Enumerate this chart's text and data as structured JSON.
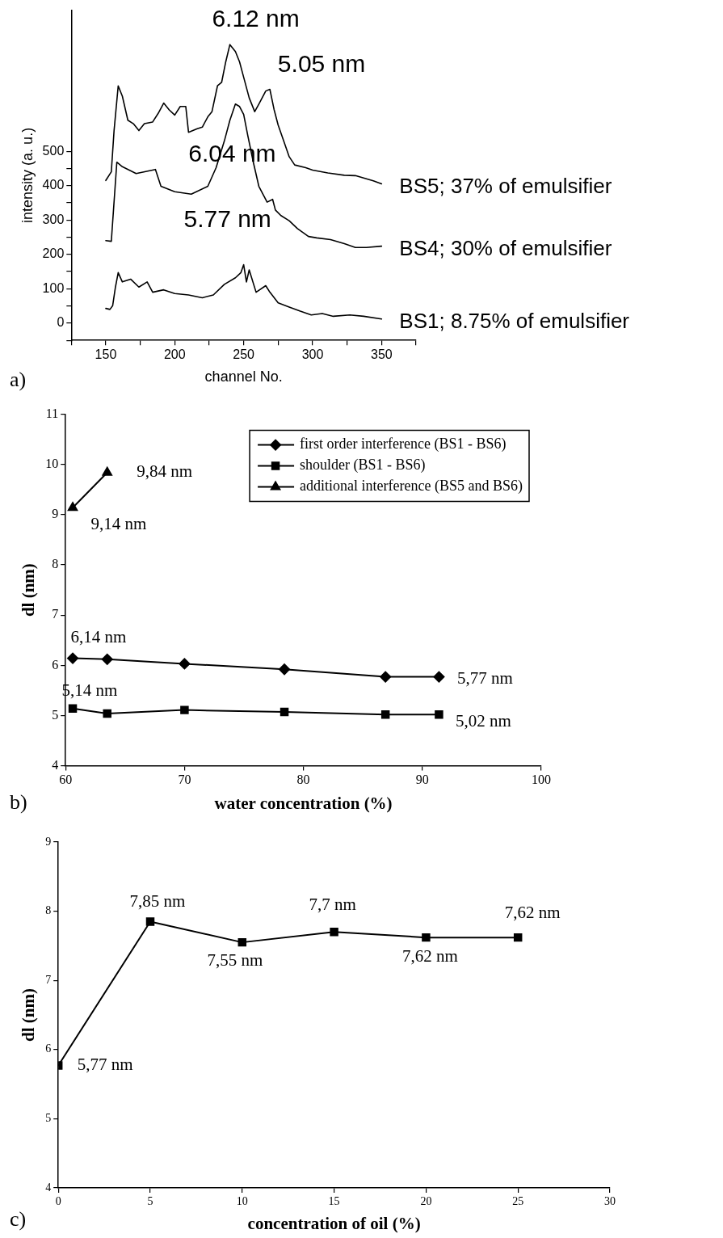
{
  "chart_data": [
    {
      "type": "line",
      "xlabel": "channel No.",
      "ylabel": "intensity (a. u.)",
      "xlim": [
        125,
        375
      ],
      "xticks": [
        {
          "value": 125,
          "label": null
        },
        150,
        {
          "value": 175,
          "label": null
        },
        200,
        {
          "value": 225,
          "label": null
        },
        250,
        {
          "value": 275,
          "label": null
        },
        300,
        {
          "value": 325,
          "label": null
        },
        350,
        {
          "value": 375,
          "label": null
        }
      ],
      "ylim": [
        -50,
        910
      ],
      "yticks": [
        {
          "value": -50,
          "label": null
        },
        0,
        {
          "value": 50,
          "label": null
        },
        100,
        {
          "value": 150,
          "label": null
        },
        200,
        {
          "value": 250,
          "label": null
        },
        300,
        {
          "value": 350,
          "label": null
        },
        400,
        {
          "value": 450,
          "label": null
        },
        500
      ],
      "grid": false,
      "legend": false,
      "marker": "none",
      "line_style": "solid",
      "series": [
        {
          "name": "BS5; 37% of emulsifier",
          "color": "#000000",
          "x": [
            150,
            154,
            156,
            159,
            162,
            166,
            170,
            174,
            178,
            184,
            188,
            192,
            196,
            200,
            204,
            208,
            210,
            216,
            220,
            224,
            227,
            231,
            234,
            237,
            240,
            242,
            244,
            247,
            250,
            254,
            258,
            261,
            266,
            269,
            272,
            275,
            279,
            283,
            287,
            295,
            300,
            311,
            323,
            331,
            338,
            344,
            350
          ],
          "values": [
            415,
            440,
            560,
            690,
            660,
            590,
            580,
            560,
            580,
            585,
            610,
            640,
            620,
            605,
            630,
            630,
            555,
            565,
            570,
            600,
            615,
            690,
            700,
            760,
            810,
            800,
            790,
            760,
            715,
            655,
            615,
            637,
            675,
            680,
            622,
            576,
            530,
            484,
            460,
            452,
            445,
            437,
            430,
            429,
            421,
            414,
            405
          ]
        },
        {
          "name": "BS4; 30% of emulsifier",
          "color": "#000000",
          "x": [
            150,
            154,
            158,
            162,
            172,
            186,
            190,
            200,
            212,
            224,
            230,
            236,
            240,
            244,
            247,
            250,
            253,
            257,
            261,
            267,
            271,
            273,
            277,
            283,
            289,
            297,
            303,
            313,
            323,
            331,
            339,
            350
          ],
          "values": [
            240,
            238,
            468,
            455,
            435,
            447,
            398,
            382,
            375,
            398,
            452,
            530,
            590,
            637,
            630,
            607,
            545,
            468,
            398,
            352,
            360,
            329,
            313,
            298,
            275,
            252,
            248,
            243,
            231,
            220,
            220,
            224
          ]
        },
        {
          "name": "BS1; 8.75% of emulsifier",
          "color": "#000000",
          "x": [
            150,
            153,
            155,
            157,
            159,
            162,
            168,
            174,
            180,
            184,
            192,
            200,
            210,
            220,
            228,
            236,
            244,
            248,
            250,
            252,
            254,
            259,
            266,
            269,
            275,
            283,
            291,
            299,
            307,
            315,
            327,
            337,
            350
          ],
          "values": [
            43,
            40,
            51,
            105,
            147,
            120,
            128,
            105,
            120,
            90,
            97,
            86,
            82,
            74,
            82,
            113,
            132,
            147,
            170,
            120,
            155,
            90,
            109,
            90,
            59,
            47,
            35,
            24,
            28,
            20,
            24,
            20,
            12
          ]
        }
      ],
      "annotations": [
        {
          "text": "6.12 nm",
          "x": 240,
          "y": 810
        },
        {
          "text": "5.05 nm",
          "x": 269,
          "y": 680
        },
        {
          "text": "6.04 nm",
          "x": 244,
          "y": 637
        },
        {
          "text": "5.77 nm",
          "x": 250,
          "y": 170
        },
        "a)"
      ]
    },
    {
      "type": "line",
      "xlabel": "water concentration (%)",
      "ylabel": "dl (nm)",
      "xlim": [
        60,
        100
      ],
      "xticks": [
        60,
        70,
        80,
        90,
        100
      ],
      "ylim": [
        4,
        11
      ],
      "yticks": [
        4,
        5,
        6,
        7,
        8,
        9,
        10,
        11
      ],
      "grid": false,
      "legend": "top right",
      "line_style": "solid",
      "series": [
        {
          "name": "first order interference (BS1 - BS6)",
          "color": "#000000",
          "marker": "diamond",
          "x": [
            60.6,
            63.5,
            70.0,
            78.4,
            86.9,
            91.4
          ],
          "values": [
            6.14,
            6.12,
            6.03,
            5.92,
            5.77,
            5.77
          ]
        },
        {
          "name": "shoulder (BS1 - BS6)",
          "color": "#000000",
          "marker": "square",
          "x": [
            60.6,
            63.5,
            70.0,
            78.4,
            86.9,
            91.4
          ],
          "values": [
            5.14,
            5.04,
            5.11,
            5.07,
            5.02,
            5.02
          ]
        },
        {
          "name": "additional interference (BS5 and BS6)",
          "color": "#000000",
          "marker": "triangle",
          "x": [
            60.6,
            63.5
          ],
          "values": [
            9.14,
            9.84
          ]
        }
      ],
      "annotations": [
        {
          "text": "9,84 nm",
          "x": 63.5,
          "y": 9.84
        },
        {
          "text": "9,14 nm",
          "x": 60.6,
          "y": 9.14
        },
        {
          "text": "6,14 nm",
          "x": 60.6,
          "y": 6.14
        },
        {
          "text": "5,77 nm",
          "x": 91.4,
          "y": 5.77
        },
        {
          "text": "5,14 nm",
          "x": 60.6,
          "y": 5.14
        },
        {
          "text": "5,02 nm",
          "x": 91.4,
          "y": 5.02
        },
        "b)"
      ]
    },
    {
      "type": "line",
      "xlabel": "concentration of oil (%)",
      "ylabel": "dl (nm)",
      "xlim": [
        0,
        30
      ],
      "xticks": [
        0,
        5,
        10,
        15,
        20,
        25,
        30
      ],
      "ylim": [
        4,
        9
      ],
      "yticks": [
        4,
        5,
        6,
        7,
        8,
        9
      ],
      "grid": false,
      "legend": false,
      "marker": "square",
      "line_style": "solid",
      "series": [
        {
          "color": "#000000",
          "x": [
            0,
            5,
            10,
            15,
            20,
            25
          ],
          "values": [
            5.77,
            7.85,
            7.55,
            7.7,
            7.62,
            7.62
          ]
        }
      ],
      "annotations": [
        {
          "text": "7,85 nm",
          "x": 5,
          "y": 7.85
        },
        {
          "text": "7,7 nm",
          "x": 15,
          "y": 7.7
        },
        {
          "text": "7,62 nm",
          "x": 25,
          "y": 7.62
        },
        {
          "text": "7,55 nm",
          "x": 10,
          "y": 7.55
        },
        {
          "text": "7,62 nm",
          "x": 20,
          "y": 7.62
        },
        {
          "text": "5,77 nm",
          "x": 0,
          "y": 5.77
        },
        "c)"
      ]
    }
  ]
}
